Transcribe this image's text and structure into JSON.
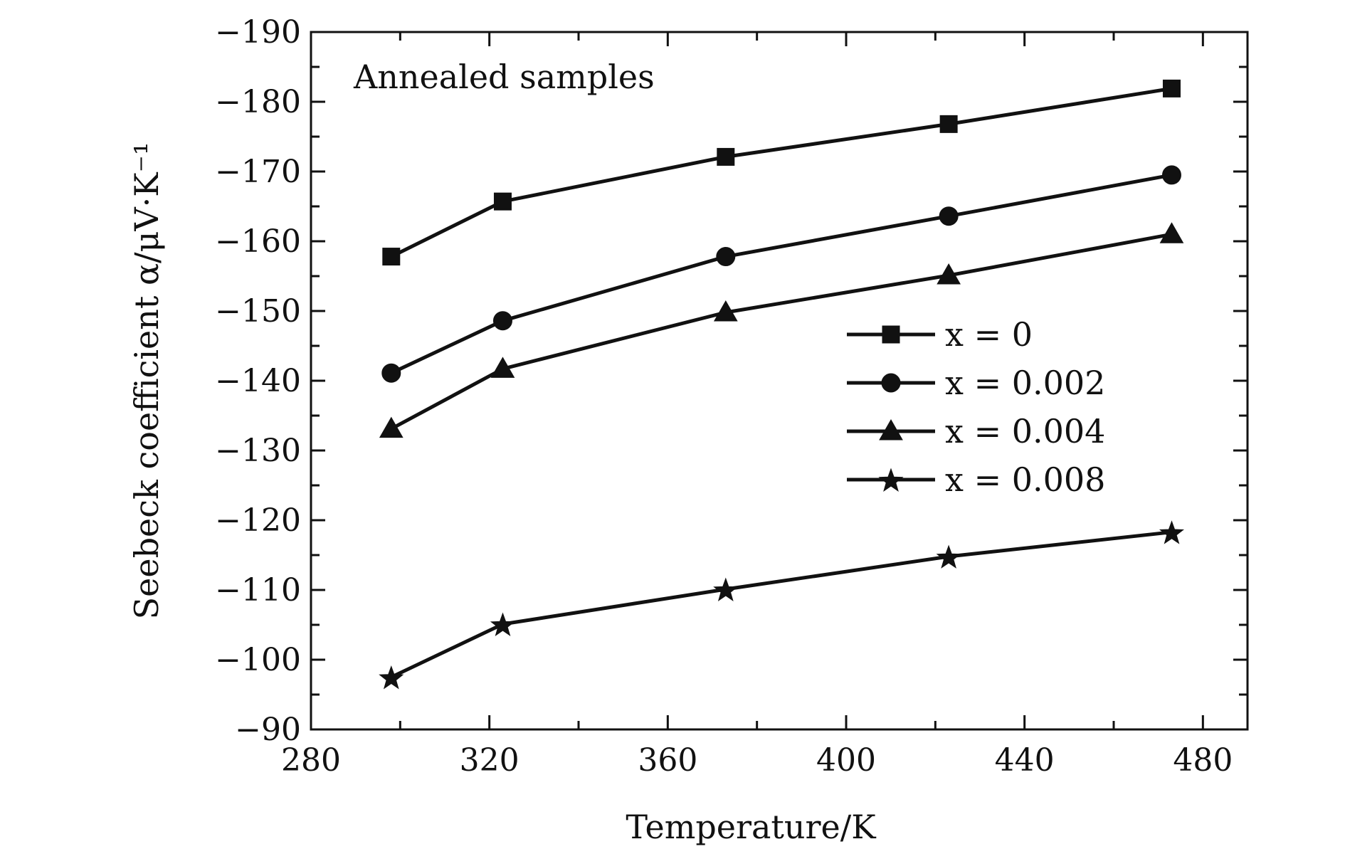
{
  "chart_data": {
    "type": "line",
    "annotation": "Annealed samples",
    "xlabel": "Temperature/K",
    "ylabel": "Seebeck coefficient α/μV·K⁻¹",
    "xlim": [
      280,
      490
    ],
    "ylim": [
      -90,
      -190
    ],
    "x_major_ticks": [
      280,
      320,
      360,
      400,
      440,
      480
    ],
    "x_minor_ticks": [
      300,
      340,
      380,
      420,
      460
    ],
    "y_major_ticks": [
      -90,
      -100,
      -110,
      -120,
      -130,
      -140,
      -150,
      -160,
      -170,
      -180,
      -190
    ],
    "x_tick_labels": [
      "280",
      "320",
      "360",
      "400",
      "440",
      "480"
    ],
    "y_tick_labels": [
      "−90",
      "−100",
      "−110",
      "−120",
      "−130",
      "−140",
      "−150",
      "−160",
      "−170",
      "−180",
      "−190"
    ],
    "grid": false,
    "legend_position": "center-right",
    "x": [
      298,
      323,
      373,
      423,
      473
    ],
    "series": [
      {
        "name": "x = 0",
        "marker": "square",
        "values": [
          -157.8,
          -165.7,
          -172.1,
          -176.8,
          -181.9
        ]
      },
      {
        "name": "x = 0.002",
        "marker": "circle",
        "values": [
          -141.1,
          -148.6,
          -157.8,
          -163.6,
          -169.5
        ]
      },
      {
        "name": "x = 0.004",
        "marker": "triangle",
        "values": [
          -133.1,
          -141.7,
          -149.8,
          -155.1,
          -161.0
        ]
      },
      {
        "name": "x = 0.008",
        "marker": "star",
        "values": [
          -97.5,
          -105.1,
          -110.1,
          -114.8,
          -118.3
        ]
      }
    ],
    "colors": {
      "line": "#111111",
      "marker": "#111111"
    }
  }
}
